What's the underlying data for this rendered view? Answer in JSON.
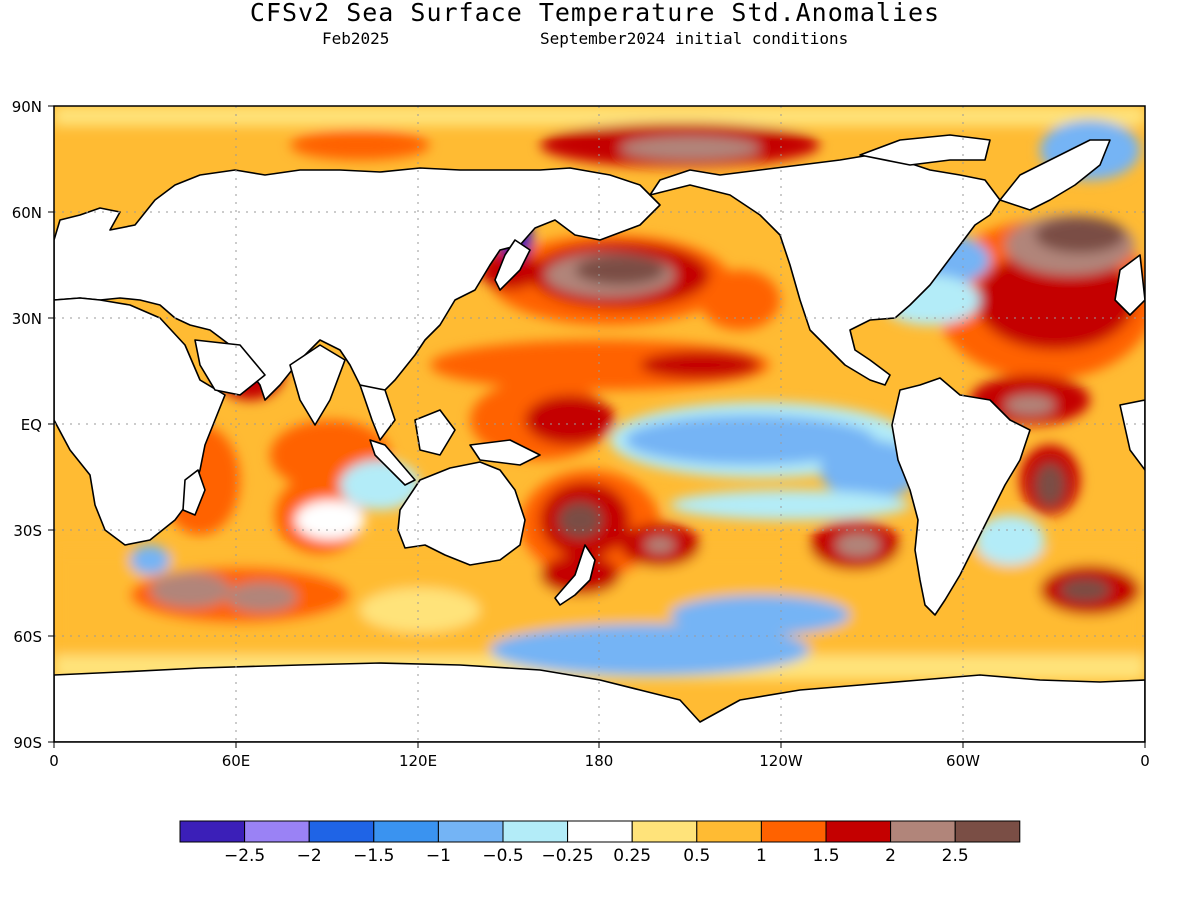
{
  "header": {
    "title": "CFSv2 Sea Surface Temperature Std.Anomalies",
    "valid_month": "Feb2025",
    "initial_conditions": "September2024 initial conditions"
  },
  "axes": {
    "lat_ticks": [
      "90N",
      "60N",
      "30N",
      "EQ",
      "30S",
      "60S",
      "90S"
    ],
    "lon_ticks": [
      "0",
      "60E",
      "120E",
      "180",
      "120W",
      "60W",
      "0"
    ]
  },
  "colorbar": {
    "labels": [
      "−2.5",
      "−2",
      "−1.5",
      "−1",
      "−0.5",
      "−0.25",
      "0.25",
      "0.5",
      "1",
      "1.5",
      "2",
      "2.5"
    ],
    "colors": [
      "#3b1fb8",
      "#9a82f5",
      "#1f64e6",
      "#3a93f0",
      "#74b4f5",
      "#b3ecf8",
      "#ffffff",
      "#ffe37a",
      "#ffbb33",
      "#ff6200",
      "#c40000",
      "#b1857a",
      "#7a4e45"
    ]
  },
  "colors": {
    "land": "#ffffff",
    "coastline": "#000000",
    "gridline": "#9a9a9a"
  }
}
